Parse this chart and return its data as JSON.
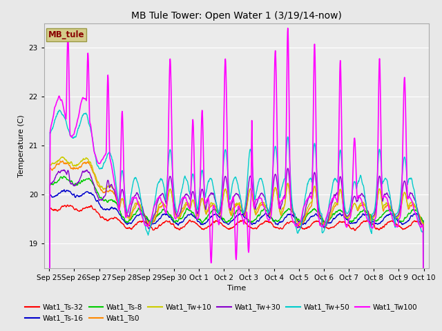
{
  "title": "MB Tule Tower: Open Water 1 (3/19/14-now)",
  "xlabel": "Time",
  "ylabel": "Temperature (C)",
  "ylim": [
    18.5,
    23.5
  ],
  "background_color": "#e8e8e8",
  "plot_bg": "#ebebeb",
  "series_colors": {
    "Wat1_Ts-32": "#ff0000",
    "Wat1_Ts-16": "#0000cc",
    "Wat1_Ts-8": "#00cc00",
    "Wat1_Ts0": "#ff8800",
    "Wat1_Tw+10": "#cccc00",
    "Wat1_Tw+30": "#8800cc",
    "Wat1_Tw+50": "#00cccc",
    "Wat1_Tw100": "#ff00ff"
  },
  "xtick_labels": [
    "Sep 25",
    "Sep 26",
    "Sep 27",
    "Sep 28",
    "Sep 29",
    "Sep 30",
    "Oct 1",
    "Oct 2",
    "Oct 3",
    "Oct 4",
    "Oct 5",
    "Oct 6",
    "Oct 7",
    "Oct 8",
    "Oct 9",
    "Oct 10"
  ],
  "xtick_positions": [
    0,
    1,
    2,
    3,
    4,
    5,
    6,
    7,
    8,
    9,
    10,
    11,
    12,
    13,
    14,
    15
  ],
  "label_box": "MB_tule",
  "label_box_facecolor": "#d4cc8a",
  "label_box_edgecolor": "#999944",
  "label_box_text_color": "#880000",
  "grid_color": "#ffffff",
  "spine_color": "#aaaaaa"
}
